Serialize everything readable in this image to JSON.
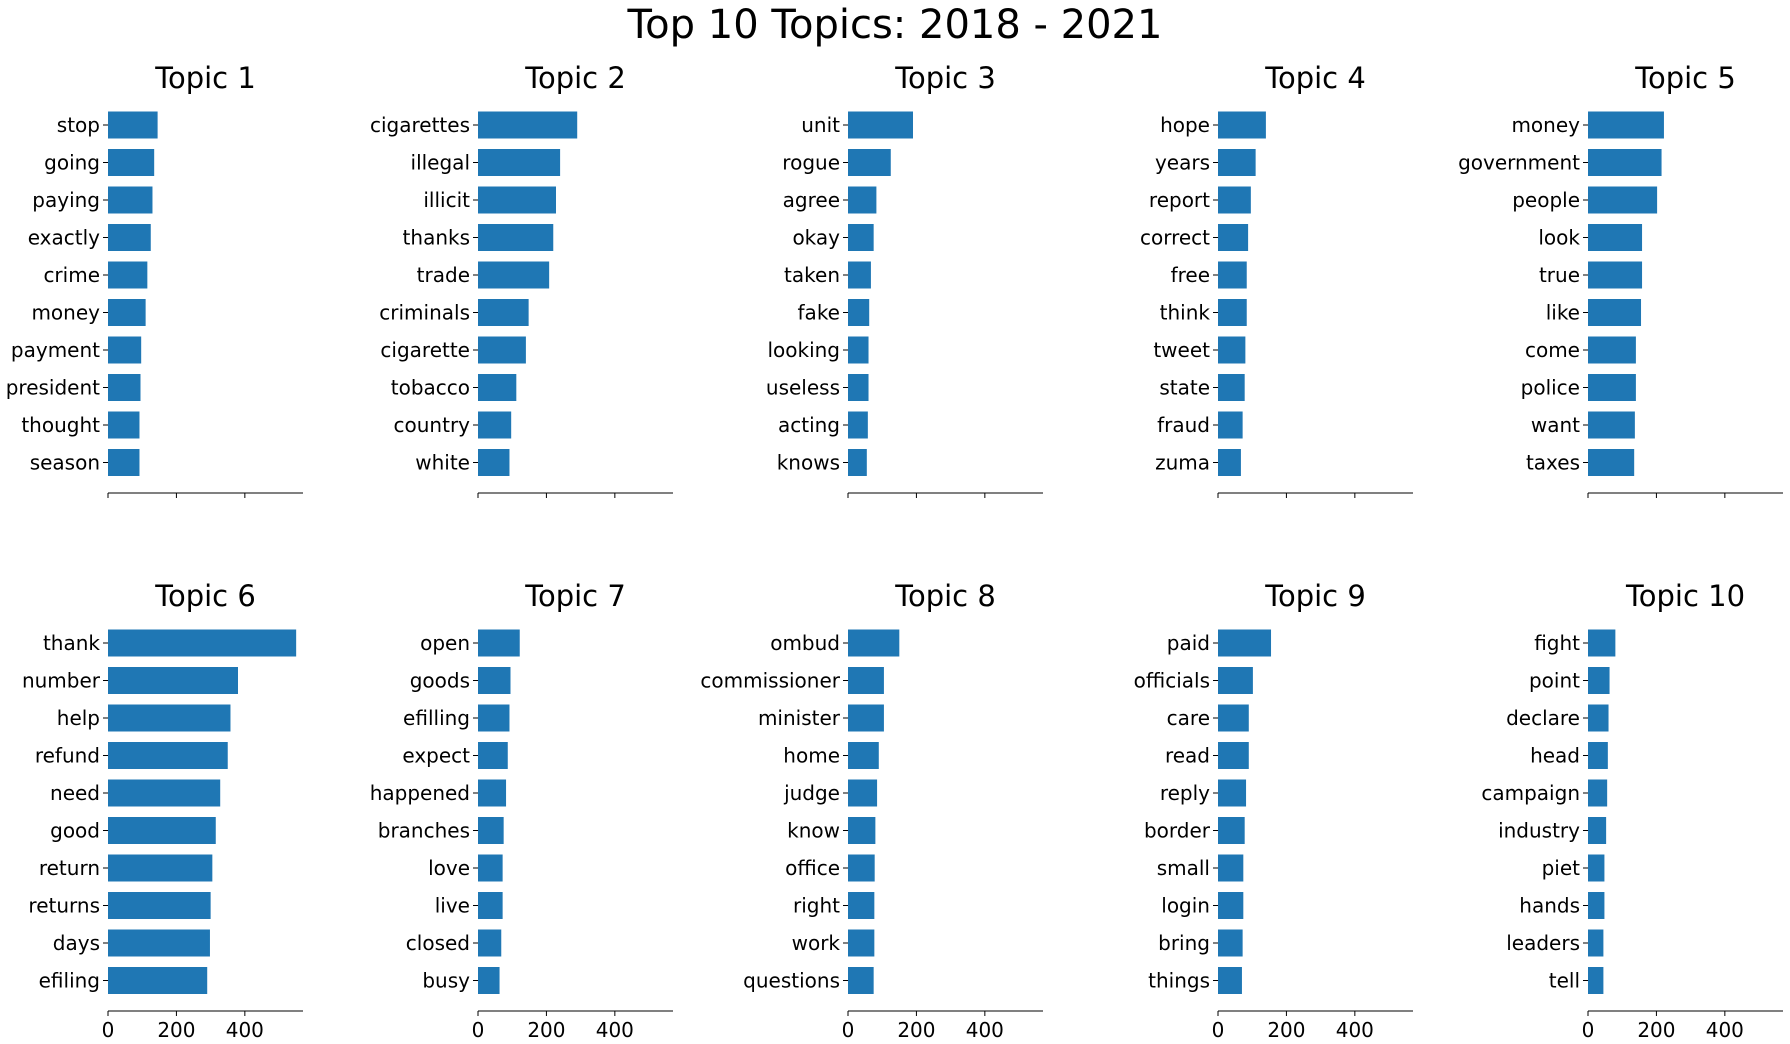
{
  "title": "Top 10 Topics: 2018 - 2021",
  "bar_color": "#1f77b4",
  "chart_data": [
    {
      "type": "bar",
      "orientation": "horizontal",
      "title": "Topic 1",
      "xlim": [
        0,
        570
      ],
      "xticks": [
        "0",
        "200",
        "400"
      ],
      "show_xtick_labels": false,
      "categories": [
        "stop",
        "going",
        "paying",
        "exactly",
        "crime",
        "money",
        "payment",
        "president",
        "thought",
        "season"
      ],
      "values": [
        145,
        135,
        130,
        125,
        115,
        110,
        97,
        95,
        92,
        92
      ]
    },
    {
      "type": "bar",
      "orientation": "horizontal",
      "title": "Topic 2",
      "xlim": [
        0,
        570
      ],
      "xticks": [
        "0",
        "200",
        "400"
      ],
      "show_xtick_labels": false,
      "categories": [
        "cigarettes",
        "illegal",
        "illicit",
        "thanks",
        "trade",
        "criminals",
        "cigarette",
        "tobacco",
        "country",
        "white"
      ],
      "values": [
        290,
        240,
        228,
        220,
        208,
        148,
        140,
        112,
        97,
        92
      ]
    },
    {
      "type": "bar",
      "orientation": "horizontal",
      "title": "Topic 3",
      "xlim": [
        0,
        570
      ],
      "xticks": [
        "0",
        "200",
        "400"
      ],
      "show_xtick_labels": false,
      "categories": [
        "unit",
        "rogue",
        "agree",
        "okay",
        "taken",
        "fake",
        "looking",
        "useless",
        "acting",
        "knows"
      ],
      "values": [
        190,
        125,
        83,
        75,
        67,
        62,
        60,
        60,
        58,
        55
      ]
    },
    {
      "type": "bar",
      "orientation": "horizontal",
      "title": "Topic 4",
      "xlim": [
        0,
        570
      ],
      "xticks": [
        "0",
        "200",
        "400"
      ],
      "show_xtick_labels": false,
      "categories": [
        "hope",
        "years",
        "report",
        "correct",
        "free",
        "think",
        "tweet",
        "state",
        "fraud",
        "zuma"
      ],
      "values": [
        140,
        110,
        96,
        88,
        84,
        84,
        80,
        78,
        72,
        67
      ]
    },
    {
      "type": "bar",
      "orientation": "horizontal",
      "title": "Topic 5",
      "xlim": [
        0,
        570
      ],
      "xticks": [
        "0",
        "200",
        "400"
      ],
      "show_xtick_labels": false,
      "categories": [
        "money",
        "government",
        "people",
        "look",
        "true",
        "like",
        "come",
        "police",
        "want",
        "taxes"
      ],
      "values": [
        222,
        215,
        202,
        158,
        158,
        155,
        140,
        140,
        137,
        135
      ]
    },
    {
      "type": "bar",
      "orientation": "horizontal",
      "title": "Topic 6",
      "xlim": [
        0,
        570
      ],
      "xticks": [
        "0",
        "200",
        "400"
      ],
      "show_xtick_labels": true,
      "categories": [
        "thank",
        "number",
        "help",
        "refund",
        "need",
        "good",
        "return",
        "returns",
        "days",
        "efiling"
      ],
      "values": [
        550,
        380,
        358,
        350,
        328,
        315,
        305,
        300,
        298,
        290
      ]
    },
    {
      "type": "bar",
      "orientation": "horizontal",
      "title": "Topic 7",
      "xlim": [
        0,
        570
      ],
      "xticks": [
        "0",
        "200",
        "400"
      ],
      "show_xtick_labels": true,
      "categories": [
        "open",
        "goods",
        "efilling",
        "expect",
        "happened",
        "branches",
        "love",
        "live",
        "closed",
        "busy"
      ],
      "values": [
        122,
        95,
        92,
        87,
        82,
        75,
        72,
        72,
        68,
        63
      ]
    },
    {
      "type": "bar",
      "orientation": "horizontal",
      "title": "Topic 8",
      "xlim": [
        0,
        570
      ],
      "xticks": [
        "0",
        "200",
        "400"
      ],
      "show_xtick_labels": true,
      "categories": [
        "ombud",
        "commissioner",
        "minister",
        "home",
        "judge",
        "know",
        "office",
        "right",
        "work",
        "questions"
      ],
      "values": [
        150,
        105,
        105,
        90,
        85,
        80,
        78,
        77,
        77,
        75
      ]
    },
    {
      "type": "bar",
      "orientation": "horizontal",
      "title": "Topic 9",
      "xlim": [
        0,
        570
      ],
      "xticks": [
        "0",
        "200",
        "400"
      ],
      "show_xtick_labels": true,
      "categories": [
        "paid",
        "officials",
        "care",
        "read",
        "reply",
        "border",
        "small",
        "login",
        "bring",
        "things"
      ],
      "values": [
        155,
        102,
        90,
        90,
        82,
        78,
        74,
        74,
        72,
        70
      ]
    },
    {
      "type": "bar",
      "orientation": "horizontal",
      "title": "Topic 10",
      "xlim": [
        0,
        570
      ],
      "xticks": [
        "0",
        "200",
        "400"
      ],
      "show_xtick_labels": true,
      "categories": [
        "fight",
        "point",
        "declare",
        "head",
        "campaign",
        "industry",
        "piet",
        "hands",
        "leaders",
        "tell"
      ],
      "values": [
        80,
        63,
        60,
        58,
        56,
        53,
        48,
        48,
        45,
        45
      ]
    }
  ]
}
